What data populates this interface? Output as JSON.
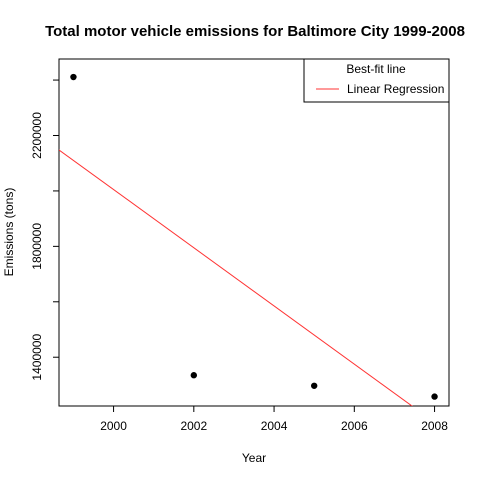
{
  "chart_data": {
    "type": "scatter",
    "title": "Total motor vehicle emissions for Baltimore City 1999-2008",
    "xlabel": "Year",
    "ylabel": "Emissions (tons)",
    "xlim": [
      1998.64,
      2008.36
    ],
    "ylim": [
      1224000,
      2476000
    ],
    "x_ticks": [
      2000,
      2002,
      2004,
      2006,
      2008
    ],
    "y_ticks": [
      1400000,
      1800000,
      2200000
    ],
    "y_tick_labels_shown": [
      true,
      true,
      true
    ],
    "series": [
      {
        "name": "",
        "type": "scatter",
        "color": "#000000",
        "points": [
          {
            "x": 1999,
            "y": 2411000
          },
          {
            "x": 2002,
            "y": 1335000
          },
          {
            "x": 2005,
            "y": 1297000
          },
          {
            "x": 2008,
            "y": 1258000
          }
        ]
      },
      {
        "name": "Linear Regression",
        "type": "line",
        "color": "#ff3333",
        "slope": -105000,
        "intercept_at_1999": 2110000
      }
    ],
    "legend": {
      "position": "top-right",
      "entries": [
        {
          "label": "Best-fit line",
          "color": "",
          "kind": "heading"
        },
        {
          "label": "Linear Regression",
          "color": "#ff3333",
          "kind": "line"
        }
      ]
    },
    "grid": false
  }
}
